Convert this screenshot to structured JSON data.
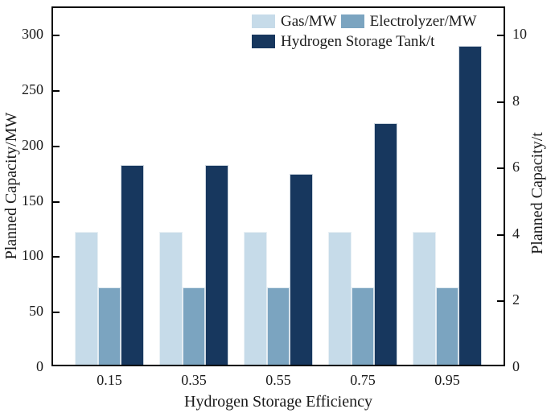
{
  "chart_data": {
    "type": "bar",
    "title": "",
    "categories": [
      "0.15",
      "0.35",
      "0.55",
      "0.75",
      "0.95"
    ],
    "series": [
      {
        "name": "Gas/MW",
        "axis": "left",
        "color": "#c6dbe9",
        "values": [
          120,
          120,
          120,
          120,
          120
        ]
      },
      {
        "name": "Electrolyzer/MW",
        "axis": "left",
        "color": "#7ba4c0",
        "values": [
          70,
          70,
          70,
          70,
          70
        ]
      },
      {
        "name": "Hydrogen Storage Tank/t",
        "axis": "right",
        "color": "#17375e",
        "values": [
          6.0,
          6.0,
          5.75,
          7.27,
          9.6
        ]
      }
    ],
    "xlabel": "Hydrogen Storage Efficiency",
    "ylabel_left": "Planned Capacity/MW",
    "ylabel_right": "Planned Capacity/t",
    "ylim_left": [
      0,
      325
    ],
    "ylim_right": [
      0,
      10.833
    ],
    "yticks_left": [
      0,
      50,
      100,
      150,
      200,
      250,
      300
    ],
    "yticks_right": [
      0,
      2,
      4,
      6,
      8,
      10
    ],
    "grid": false,
    "legend_position": "upper-right-inside",
    "legend_rows": [
      [
        "Gas/MW",
        "Electrolyzer/MW"
      ],
      [
        "Hydrogen Storage Tank/t"
      ]
    ],
    "colors": {
      "axis": "#000000",
      "text": "#1a1a1a"
    }
  }
}
